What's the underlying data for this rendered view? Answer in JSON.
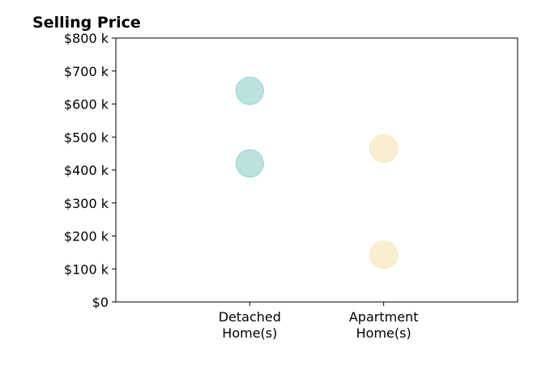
{
  "chart_data": {
    "type": "scatter",
    "title": "Selling Price",
    "xlabel": "",
    "ylabel": "",
    "categories": [
      "Detached\nHome(s)",
      "Apartment\nHome(s)"
    ],
    "x_range": [
      0,
      3
    ],
    "ylim": [
      0,
      800
    ],
    "y_ticks": [
      0,
      100,
      200,
      300,
      400,
      500,
      600,
      700,
      800
    ],
    "y_tick_labels": [
      "$0",
      "$100 k",
      "$200 k",
      "$300 k",
      "$400 k",
      "$500 k",
      "$600 k",
      "$700 k",
      "$800 k"
    ],
    "grid": false,
    "series": [
      {
        "category": "Detached\nHome(s)",
        "values": [
          640,
          420
        ],
        "color": "#8ecfc9"
      },
      {
        "category": "Apartment\nHome(s)",
        "values": [
          465,
          143
        ],
        "color": "#f6e3b4"
      }
    ],
    "marker_opacity": 0.6
  }
}
